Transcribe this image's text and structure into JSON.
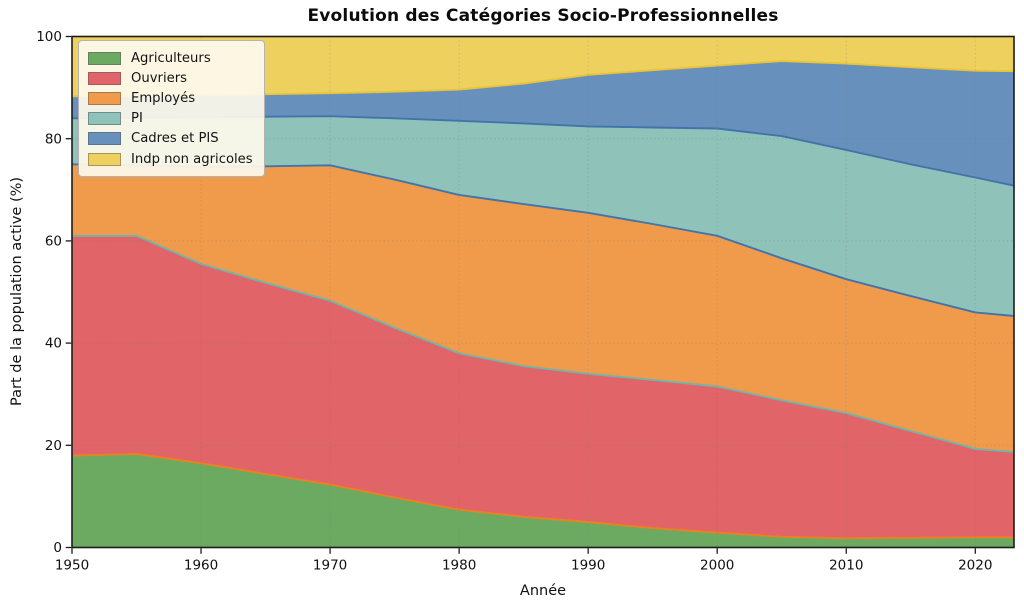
{
  "figure": {
    "title": "Evolution des Catégories Socio-Professionnelles",
    "x_label": "Année",
    "y_label": "Part de la population active (%)"
  },
  "chart_data": {
    "type": "area",
    "stacked": true,
    "title": "Evolution des Catégories Socio-Professionnelles",
    "xlabel": "Année",
    "ylabel": "Part de la population active (%)",
    "xlim": [
      1950,
      2023
    ],
    "ylim": [
      0,
      100
    ],
    "x_ticks": [
      1950,
      1960,
      1970,
      1980,
      1990,
      2000,
      2010,
      2020
    ],
    "y_ticks": [
      0,
      20,
      40,
      60,
      80,
      100
    ],
    "grid": "dotted",
    "legend_position": "upper-left",
    "x": [
      1950,
      1955,
      1960,
      1965,
      1970,
      1975,
      1980,
      1985,
      1990,
      1995,
      2000,
      2005,
      2010,
      2015,
      2020,
      2023
    ],
    "series": [
      {
        "name": "Agriculteurs",
        "color": "#6daa61",
        "edge": "#d93d43",
        "values": [
          18.0,
          18.3,
          16.5,
          14.4,
          12.3,
          9.8,
          7.4,
          6.0,
          5.0,
          3.8,
          2.9,
          2.1,
          1.8,
          1.9,
          2.0,
          2.0
        ]
      },
      {
        "name": "Ouvriers",
        "color": "#e16469",
        "edge": "#ec821f",
        "values": [
          43.0,
          42.7,
          39.0,
          37.4,
          36.0,
          33.2,
          30.6,
          29.5,
          29.0,
          29.0,
          28.6,
          26.7,
          24.5,
          20.9,
          17.3,
          16.7
        ]
      },
      {
        "name": "Employés",
        "color": "#f09b4c",
        "edge": "#73b3a8",
        "values": [
          14.0,
          13.8,
          19.0,
          22.8,
          26.5,
          29.0,
          31.0,
          31.7,
          31.5,
          30.5,
          29.5,
          27.8,
          26.2,
          26.4,
          26.7,
          26.6
        ]
      },
      {
        "name": "PI",
        "color": "#8fc2b9",
        "edge": "#4274ab",
        "values": [
          9.0,
          9.3,
          9.7,
          9.7,
          9.6,
          12.0,
          14.5,
          15.8,
          16.9,
          18.9,
          21.0,
          23.9,
          25.3,
          25.8,
          26.4,
          25.5
        ]
      },
      {
        "name": "Cadres et PIS",
        "color": "#6890bc",
        "edge": "#4274ab",
        "values": [
          4.3,
          4.3,
          4.4,
          4.4,
          4.5,
          5.2,
          6.1,
          7.8,
          10.1,
          11.2,
          12.3,
          14.7,
          16.9,
          19.0,
          20.9,
          22.4
        ]
      },
      {
        "name": "Indp non agricoles",
        "color": "#eed05f",
        "edge": "#eac437",
        "values": [
          11.7,
          11.6,
          11.4,
          11.3,
          11.1,
          10.8,
          10.4,
          9.2,
          7.5,
          6.6,
          5.7,
          4.8,
          5.3,
          6.0,
          6.7,
          6.8
        ]
      }
    ]
  },
  "legend": {
    "items": [
      "Agriculteurs",
      "Ouvriers",
      "Employés",
      "PI",
      "Cadres et PIS",
      "Indp non agricoles"
    ]
  }
}
